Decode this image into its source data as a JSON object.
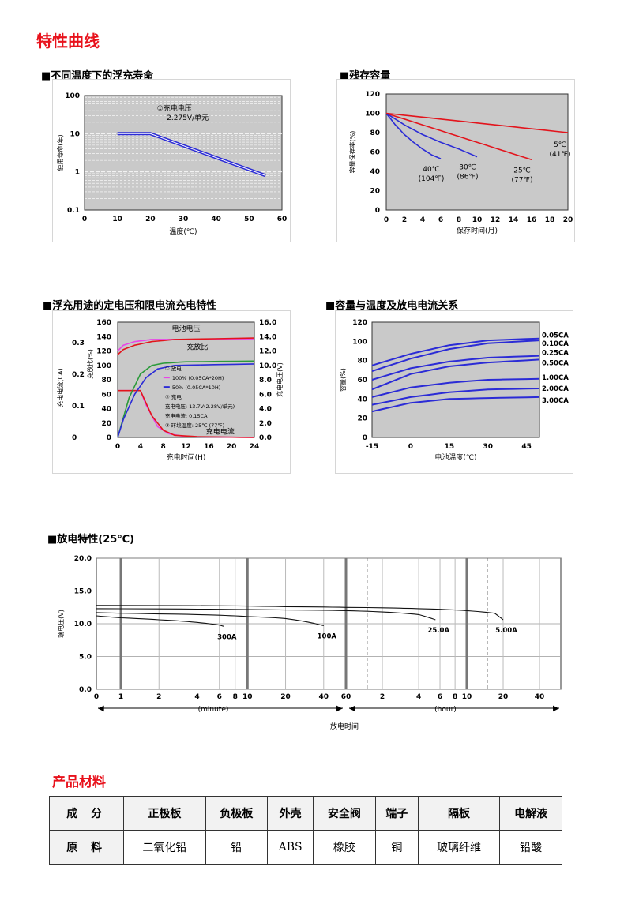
{
  "heading_curves": "特性曲线",
  "heading_materials": "产品材料",
  "materials": {
    "header": [
      "成 分",
      "正极板",
      "负极板",
      "外壳",
      "安全阀",
      "端子",
      "隔板",
      "电解液"
    ],
    "row": [
      "原 料",
      "二氧化铅",
      "铅",
      "ABS",
      "橡胶",
      "铜",
      "玻璃纤维",
      "铅酸"
    ]
  },
  "chart_data": [
    {
      "id": "float_life",
      "type": "line",
      "title": "■不同温度下的浮充寿命",
      "xlabel": "温度(℃)",
      "ylabel": "使用寿命(年)",
      "y_scale": "log",
      "xlim": [
        0,
        60
      ],
      "ylim": [
        0.1,
        100
      ],
      "x_ticks": [
        "0",
        "10",
        "20",
        "30",
        "40",
        "50",
        "60"
      ],
      "y_ticks": [
        "100",
        "10",
        "1",
        "0.1"
      ],
      "annotation": [
        "①充电电压",
        "2.275V/单元"
      ],
      "series": [
        {
          "x": [
            10,
            20,
            55
          ],
          "y": [
            10,
            10,
            0.8
          ]
        }
      ]
    },
    {
      "id": "residual_capacity",
      "type": "line",
      "title": "■残存容量",
      "xlabel": "保存时间(月)",
      "ylabel": "容量保存率(%)",
      "xlim": [
        0,
        20
      ],
      "ylim": [
        0,
        120
      ],
      "x_ticks": [
        "0",
        "2",
        "4",
        "6",
        "8",
        "10",
        "12",
        "14",
        "16",
        "18",
        "20"
      ],
      "y_ticks": [
        "0",
        "20",
        "40",
        "60",
        "80",
        "100",
        "120"
      ],
      "series": [
        {
          "label": [
            "40℃",
            "(104℉)"
          ],
          "color": "#2b2bd6",
          "x": [
            0,
            1,
            2,
            3,
            4,
            5,
            6
          ],
          "y": [
            100,
            88,
            78,
            70,
            63,
            57,
            53
          ]
        },
        {
          "label": [
            "30℃",
            "(86℉)"
          ],
          "color": "#2b2bd6",
          "x": [
            0,
            2,
            4,
            6,
            8,
            10
          ],
          "y": [
            100,
            88,
            78,
            70,
            63,
            55
          ]
        },
        {
          "label": [
            "25℃",
            "(77℉)"
          ],
          "color": "#e3141c",
          "x": [
            0,
            4,
            8,
            12,
            16
          ],
          "y": [
            100,
            88,
            76,
            64,
            52
          ]
        },
        {
          "label": [
            "5℃",
            "(41℉)"
          ],
          "color": "#e3141c",
          "x": [
            0,
            5,
            10,
            15,
            20
          ],
          "y": [
            100,
            95,
            90,
            85,
            80
          ]
        }
      ]
    },
    {
      "id": "float_charge",
      "type": "line",
      "title": "■浮充用途的定电压和限电流充电特性",
      "xlabel": "充电时间(H)",
      "ylabel_left_outer": "充电电流(CA)",
      "ylabel_left_inner": "充放比(%)",
      "ylabel_right": "充电电压(V)",
      "xlim": [
        0,
        24
      ],
      "ylim": [
        0,
        160
      ],
      "x_ticks": [
        "0",
        "4",
        "8",
        "12",
        "16",
        "20",
        "24"
      ],
      "y_ticks": [
        "0",
        "20",
        "40",
        "60",
        "80",
        "100",
        "120",
        "140",
        "160"
      ],
      "y2_ticks": [
        "0.0",
        "2.0",
        "4.0",
        "6.0",
        "8.0",
        "10.0",
        "12.0",
        "14.0",
        "16.0"
      ],
      "y3_ticks": [
        "0",
        "0.1",
        "0.2",
        "0.3"
      ],
      "labels": {
        "voltage": "电池电压",
        "ratio": "充放比",
        "current": "充电电流"
      },
      "legend": [
        "① 放电",
        "100% (0.05CA*20H)",
        "50% (0.05CA*10H)",
        "② 充电",
        "充电电压: 13.7V(2.28V/单元)",
        "充电电流: 0.15CA",
        "③ 环境温度: 25℃ (77℉)"
      ],
      "series": [
        {
          "name": "电池电压",
          "color": "#e845e8",
          "x": [
            0,
            1,
            3,
            5,
            6,
            24
          ],
          "y": [
            120,
            128,
            133,
            135,
            136,
            136
          ]
        },
        {
          "name": "充放比",
          "color": "#e3141c",
          "x": [
            0,
            1,
            3,
            6,
            10,
            24
          ],
          "y": [
            115,
            122,
            128,
            133,
            136,
            138
          ]
        },
        {
          "name": "充电电流",
          "color": "#e845e8",
          "x": [
            0,
            4,
            5,
            7,
            9,
            12,
            24
          ],
          "y": [
            65,
            65,
            45,
            15,
            5,
            1,
            0
          ]
        },
        {
          "name": "充电电流",
          "color": "#e3141c",
          "x": [
            0,
            4,
            6,
            8,
            10,
            14,
            24
          ],
          "y": [
            65,
            65,
            30,
            10,
            3,
            1,
            0
          ]
        },
        {
          "name": "100%",
          "color": "#2a9a3a",
          "x": [
            0,
            2,
            4,
            6,
            8,
            12,
            24
          ],
          "y": [
            0,
            55,
            88,
            100,
            103,
            105,
            106
          ]
        },
        {
          "name": "50%",
          "color": "#2b2bd6",
          "x": [
            0,
            1,
            3,
            5,
            7,
            10,
            24
          ],
          "y": [
            0,
            25,
            60,
            83,
            95,
            100,
            102
          ]
        }
      ]
    },
    {
      "id": "capacity_temperature",
      "type": "line",
      "title": "■容量与温度及放电电流关系",
      "xlabel": "电池温度(℃)",
      "ylabel": "容量(%)",
      "xlim": [
        -15,
        50
      ],
      "ylim": [
        0,
        120
      ],
      "x_ticks": [
        "-15",
        "0",
        "15",
        "30",
        "45"
      ],
      "y_ticks": [
        "0",
        "20",
        "40",
        "60",
        "80",
        "100",
        "120"
      ],
      "series": [
        {
          "name": "0.05CA",
          "x": [
            -15,
            0,
            15,
            30,
            50
          ],
          "y": [
            75,
            87,
            96,
            101,
            103
          ]
        },
        {
          "name": "0.10CA",
          "x": [
            -15,
            0,
            15,
            30,
            50
          ],
          "y": [
            69,
            82,
            92,
            98,
            101
          ]
        },
        {
          "name": "0.25CA",
          "x": [
            -15,
            0,
            15,
            30,
            50
          ],
          "y": [
            60,
            72,
            79,
            83,
            85
          ]
        },
        {
          "name": "0.50CA",
          "x": [
            -15,
            0,
            15,
            30,
            50
          ],
          "y": [
            50,
            66,
            74,
            78,
            81
          ]
        },
        {
          "name": "1.00CA",
          "x": [
            -15,
            0,
            15,
            30,
            50
          ],
          "y": [
            42,
            52,
            57,
            60,
            61
          ]
        },
        {
          "name": "2.00CA",
          "x": [
            -15,
            0,
            15,
            30,
            50
          ],
          "y": [
            34,
            42,
            47,
            50,
            51
          ]
        },
        {
          "name": "3.00CA",
          "x": [
            -15,
            0,
            15,
            30,
            50
          ],
          "y": [
            27,
            36,
            40,
            41,
            42
          ]
        }
      ]
    },
    {
      "id": "discharge",
      "type": "line",
      "title": "■放电特性(25℃)",
      "xlabel": "放电时间",
      "ylabel": "端电压(V)",
      "ylim": [
        0,
        20
      ],
      "y_ticks": [
        "0.0",
        "5.0",
        "10.0",
        "15.0",
        "20.0"
      ],
      "x_ticks_minute": [
        "0",
        "1",
        "2",
        "4",
        "6",
        "8",
        "10",
        "20",
        "40",
        "60"
      ],
      "x_ticks_hour": [
        "2",
        "4",
        "6",
        "8",
        "10",
        "20",
        "40"
      ],
      "x_unit_minute": "(minute)",
      "x_unit_hour": "(hour)",
      "series": [
        {
          "name": "300A",
          "x_minutes": [
            0,
            1,
            2,
            4,
            6,
            6.5
          ],
          "y": [
            11.2,
            10.9,
            10.6,
            10.2,
            9.8,
            9.6
          ]
        },
        {
          "name": "100A",
          "x_minutes": [
            0,
            2,
            6,
            10,
            20,
            40
          ],
          "y": [
            11.7,
            11.5,
            11.3,
            11.1,
            10.8,
            9.7
          ]
        },
        {
          "name": "25.0A",
          "x_minutes": [
            0,
            6,
            20,
            60,
            120,
            240,
            330
          ],
          "y": [
            12.3,
            12.2,
            12.1,
            12.0,
            11.8,
            11.4,
            10.6
          ]
        },
        {
          "name": "5.00A",
          "x_minutes": [
            0,
            20,
            60,
            240,
            600,
            1020,
            1200
          ],
          "y": [
            12.8,
            12.6,
            12.5,
            12.3,
            12.0,
            11.6,
            10.6
          ]
        }
      ]
    }
  ]
}
